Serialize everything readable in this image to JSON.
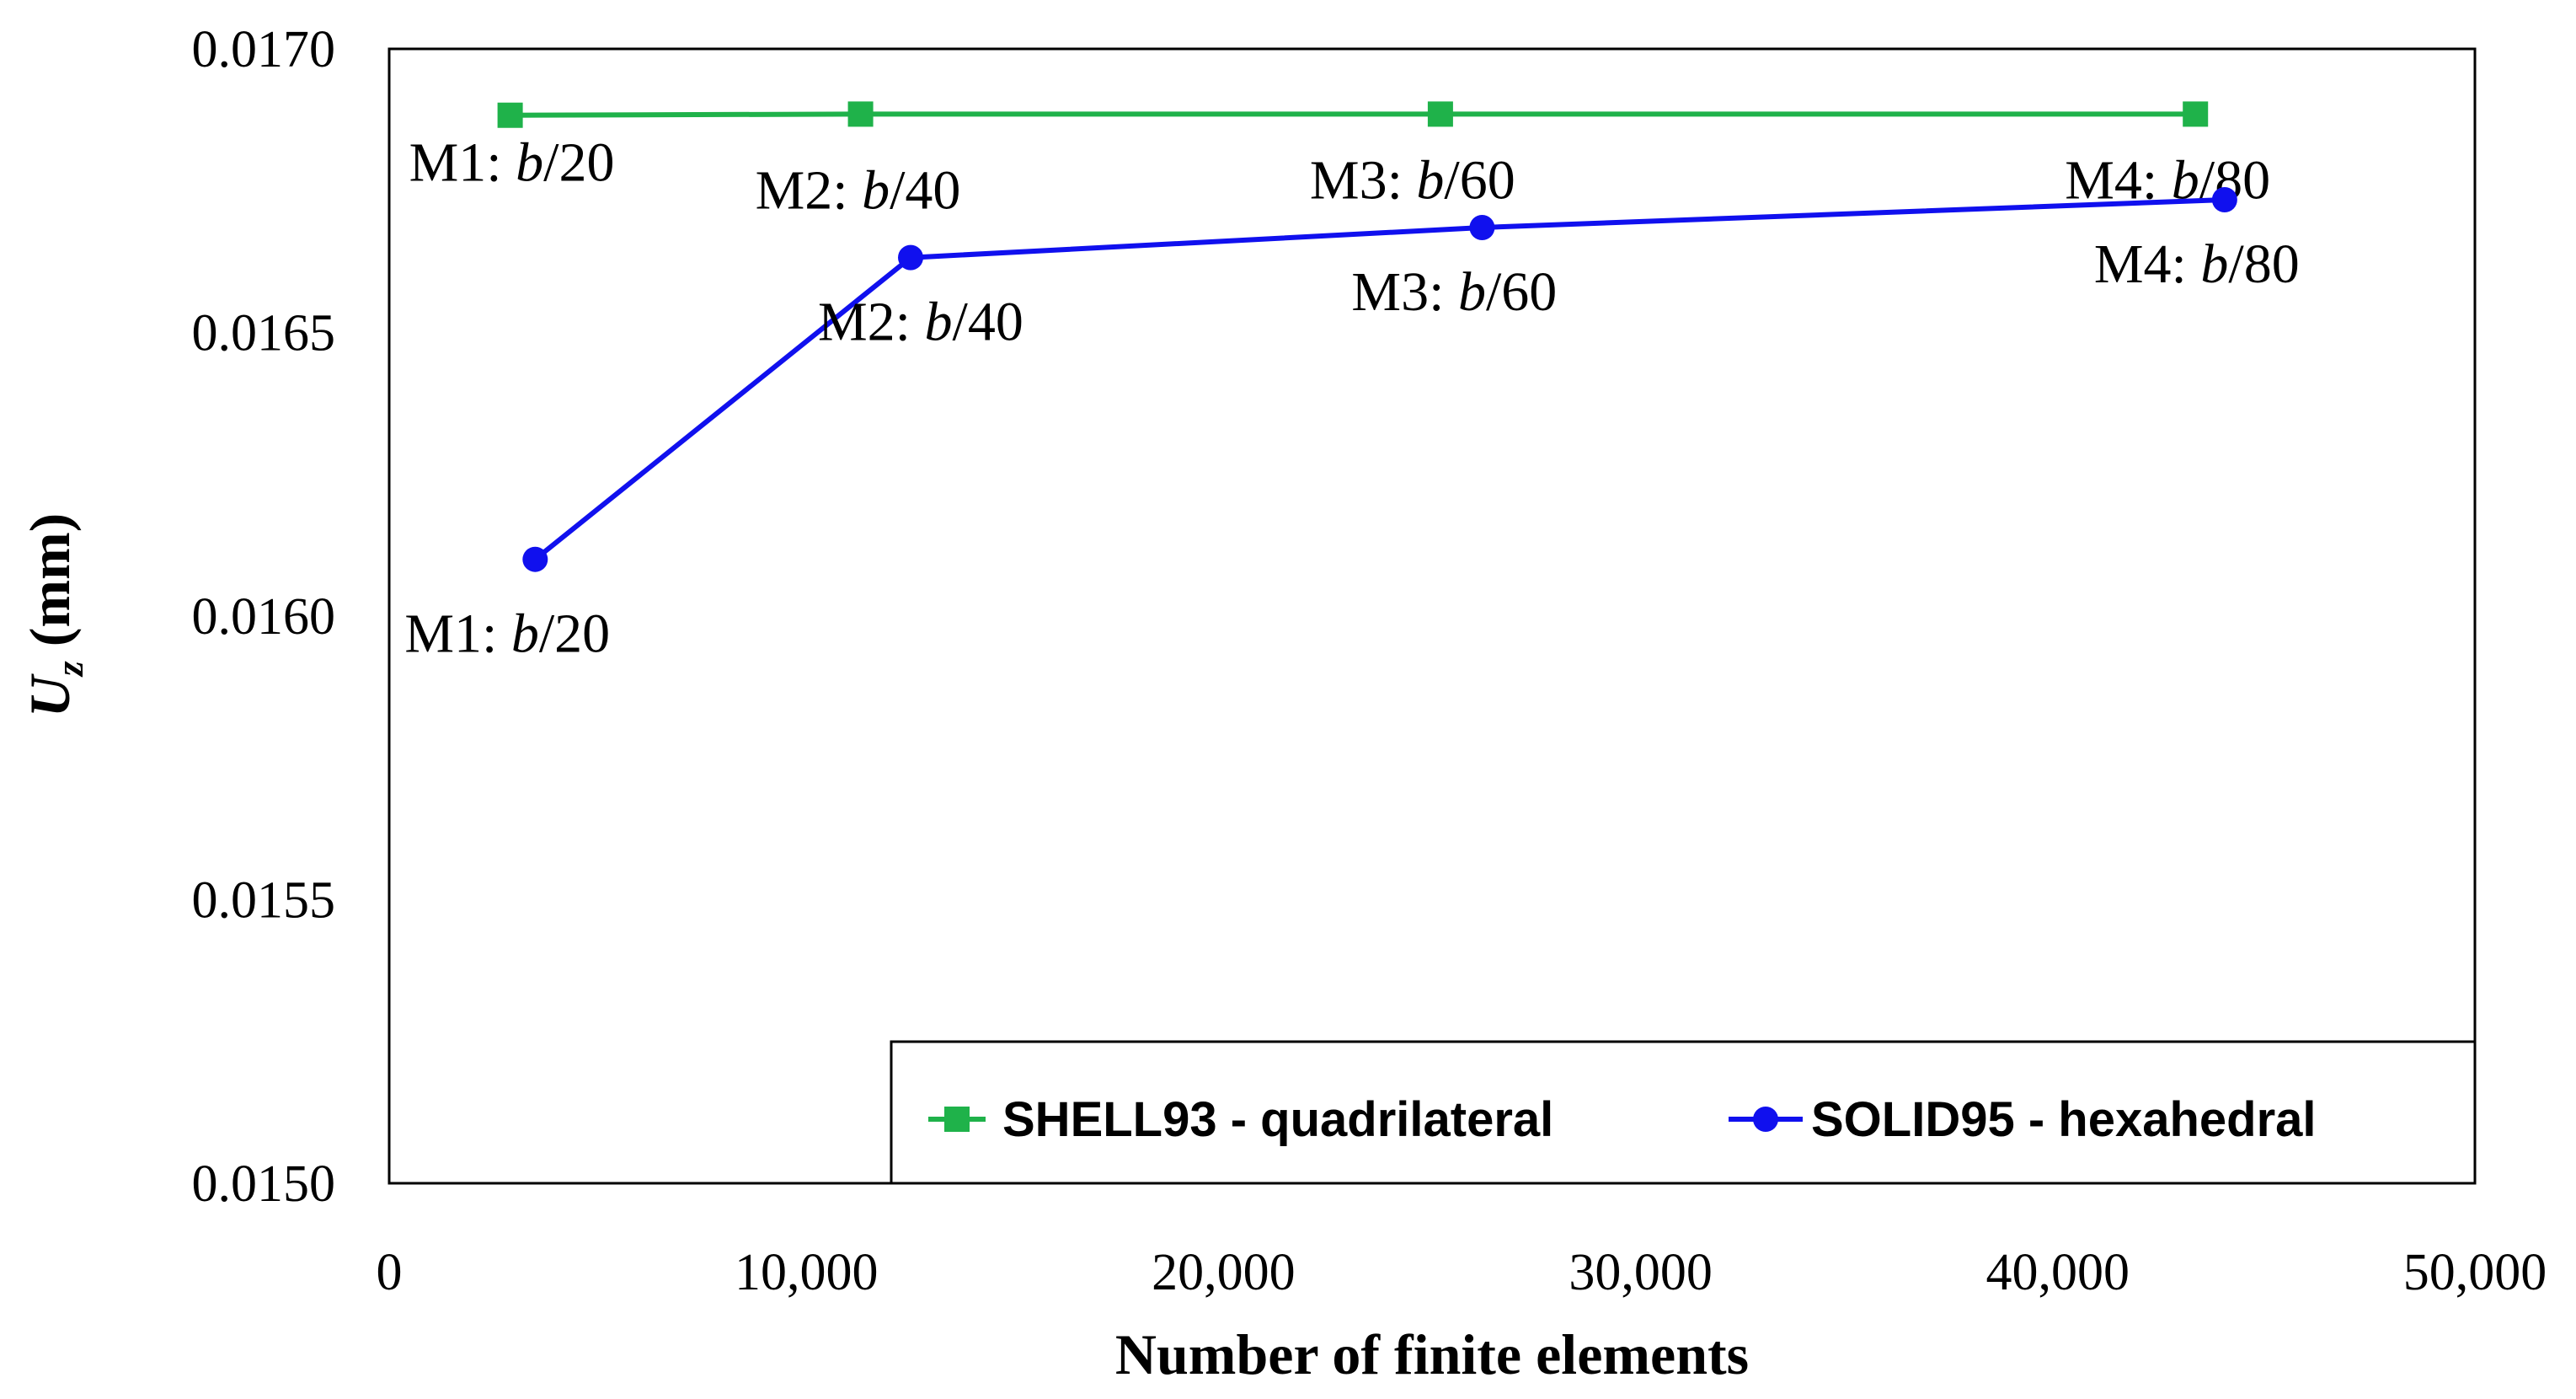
{
  "chart_data": {
    "type": "line",
    "title": "",
    "xlabel": "Number of finite elements",
    "ylabel": {
      "var": "U",
      "sub": "z",
      "unit": "(mm)"
    },
    "xlim": [
      0,
      50000
    ],
    "ylim": [
      0.015,
      0.017
    ],
    "x_ticks": [
      0,
      10000,
      20000,
      30000,
      40000,
      50000
    ],
    "x_tick_labels": [
      "0",
      "10,000",
      "20,000",
      "30,000",
      "40,000",
      "50,000"
    ],
    "y_ticks": [
      0.015,
      0.0155,
      0.016,
      0.0165,
      0.017
    ],
    "y_tick_labels": [
      "0.0150",
      "0.0155",
      "0.0160",
      "0.0165",
      "0.0170"
    ],
    "grid": false,
    "legend_position": "bottom-right",
    "series": [
      {
        "name": "SHELL93 - quadrilateral",
        "color": "#1fb24a",
        "marker": "square",
        "x": [
          2900,
          11300,
          25200,
          43300
        ],
        "y": [
          0.016883,
          0.016885,
          0.016885,
          0.016885
        ],
        "labels": [
          {
            "mesh": "M1: ",
            "var": "b",
            "frac": "/20"
          },
          {
            "mesh": "M2: ",
            "var": "b",
            "frac": "/40"
          },
          {
            "mesh": "M3: ",
            "var": "b",
            "frac": "/60"
          },
          {
            "mesh": "M4: ",
            "var": "b",
            "frac": "/80"
          }
        ]
      },
      {
        "name": "SOLID95 - hexahedral",
        "color": "#1010ee",
        "marker": "circle",
        "x": [
          3500,
          12500,
          26200,
          44000
        ],
        "y": [
          0.0161,
          0.016632,
          0.016685,
          0.016734
        ],
        "labels": [
          {
            "mesh": "M1: ",
            "var": "b",
            "frac": "/20"
          },
          {
            "mesh": "M2: ",
            "var": "b",
            "frac": "/40"
          },
          {
            "mesh": "M3: ",
            "var": "b",
            "frac": "/60"
          },
          {
            "mesh": "M4: ",
            "var": "b",
            "frac": "/80"
          }
        ]
      }
    ]
  }
}
